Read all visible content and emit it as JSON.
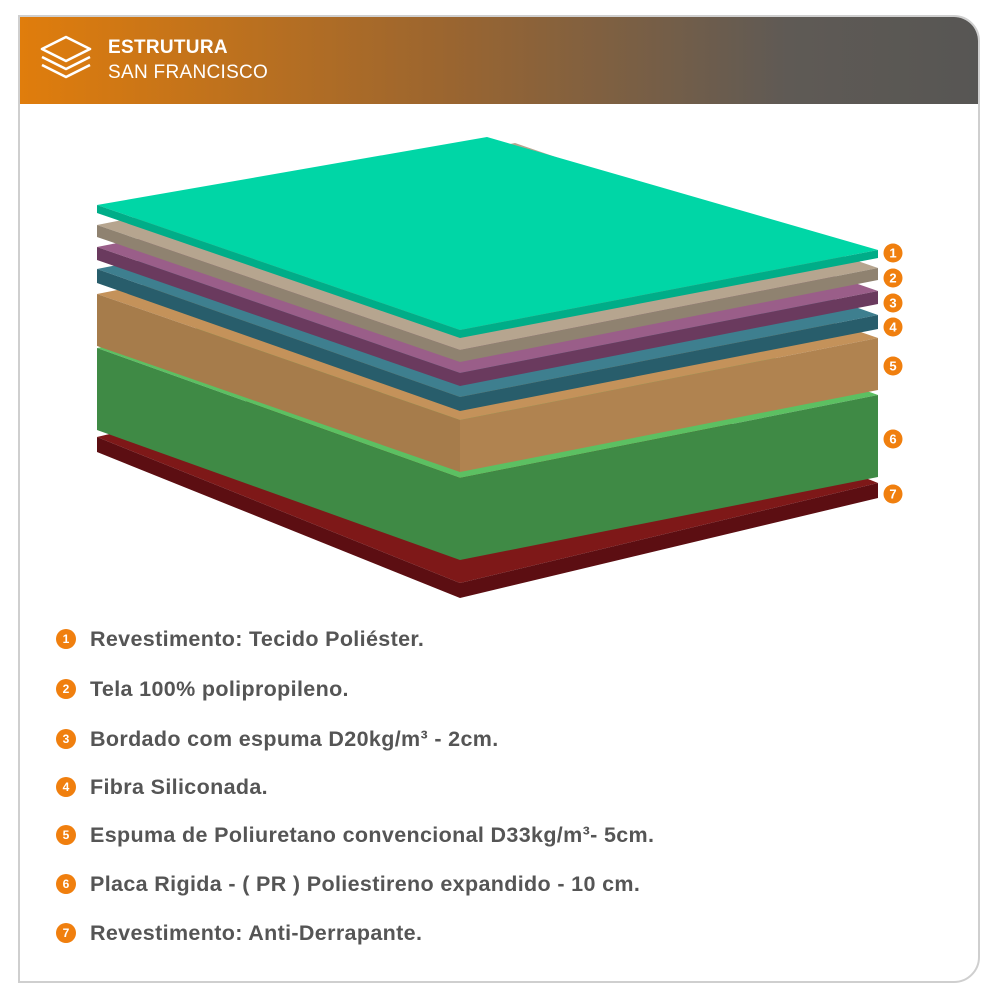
{
  "header": {
    "title": "ESTRUTURA",
    "subtitle": "SAN FRANCISCO",
    "icon": "layers-icon",
    "colors": {
      "gradient_start": "#e07d0c",
      "gradient_end": "#575654"
    }
  },
  "layers": [
    {
      "number": "1",
      "color_top": "#00d6a6",
      "color_side": "#00ad88"
    },
    {
      "number": "2",
      "color_top": "#b6a58f",
      "color_side": "#8f8270"
    },
    {
      "number": "3",
      "color_top": "#9a5e89",
      "color_side": "#6a3a5e"
    },
    {
      "number": "4",
      "color_top": "#3e7f8f",
      "color_side": "#285d6b"
    },
    {
      "number": "5",
      "color_top": "#c4925a",
      "color_side": "#a67c4b"
    },
    {
      "number": "6",
      "color_top": "#5cc062",
      "color_side": "#3f8a45"
    },
    {
      "number": "7",
      "color_top": "#7e1818",
      "color_side": "#5c0e12"
    }
  ],
  "badge_color": "#f07f0e",
  "legend": [
    {
      "number": "1",
      "text": "Revestimento: Tecido Poliéster."
    },
    {
      "number": "2",
      "text": "Tela 100% polipropileno."
    },
    {
      "number": "3",
      "text": "Bordado com espuma D20kg/m³ - 2cm."
    },
    {
      "number": "4",
      "text": "Fibra Siliconada."
    },
    {
      "number": "5",
      "text": "Espuma de Poliuretano convencional D33kg/m³- 5cm."
    },
    {
      "number": "6",
      "text": "Placa Rigida - ( PR ) Poliestireno expandido - 10 cm."
    },
    {
      "number": "7",
      "text": "Revestimento: Anti-Derrapante."
    }
  ]
}
